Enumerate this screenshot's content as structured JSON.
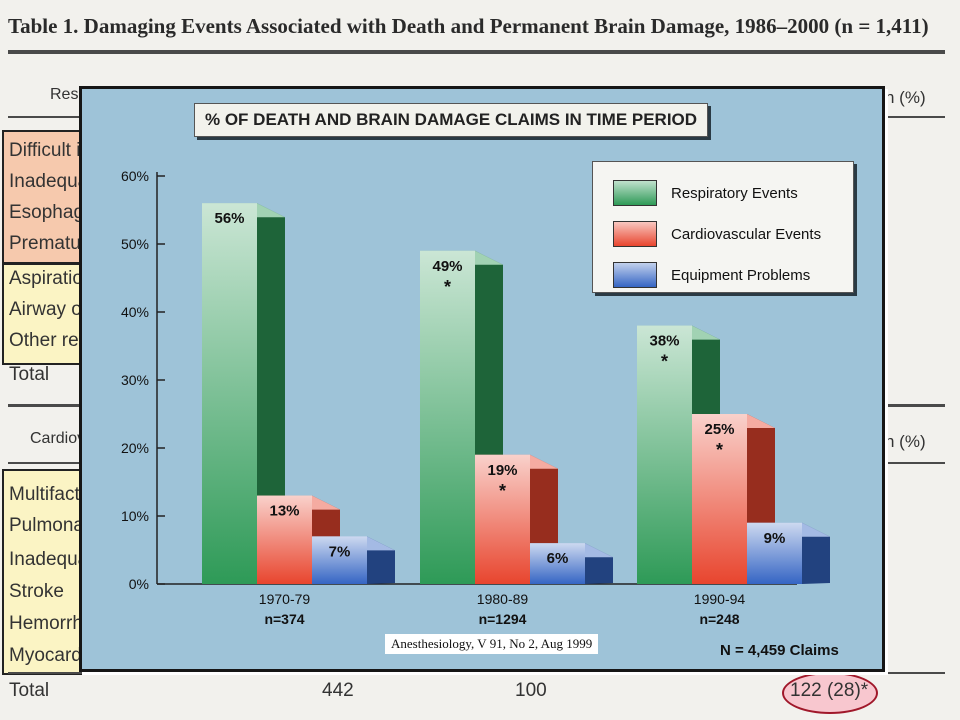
{
  "background_table": {
    "title": "Table 1. Damaging Events Associated with Death and Permanent Brain Damage, 1986–2000 (n = 1,411)",
    "header_left": "Resp",
    "header_right": "n (%)",
    "rows_top": [
      "Difficult in",
      "Inadequat",
      "Esophage",
      "Premature",
      "Aspiration",
      "Airway ob",
      "Other resp",
      "Total"
    ],
    "header2_left": "Cardiov",
    "header2_right": "n (%)",
    "rows_bottom": [
      "Multifacto",
      "Pulmonary",
      "Inadequat",
      "Stroke",
      "Hemorrha",
      "Myocardia"
    ],
    "total_label": "Total",
    "totals": [
      "442",
      "100"
    ],
    "highlighted_total": "122 (28)*"
  },
  "panel": {
    "citation": "Anesthesiology, V 91, No 2, Aug 1999",
    "claims_total": "N = 4,459 Claims"
  },
  "chart_data": {
    "type": "bar",
    "title": "% OF DEATH AND BRAIN DAMAGE CLAIMS IN TIME PERIOD",
    "categories": [
      "1970-79",
      "1980-89",
      "1990-94"
    ],
    "category_counts": [
      "n=374",
      "n=1294",
      "n=248"
    ],
    "series": [
      {
        "name": "Respiratory Events",
        "values": [
          56,
          49,
          38
        ],
        "labels": [
          "56%",
          "49%",
          "38%"
        ],
        "color": "#2e9a57",
        "asterisk": [
          false,
          true,
          true
        ]
      },
      {
        "name": "Cardiovascular Events",
        "values": [
          13,
          19,
          25
        ],
        "labels": [
          "13%",
          "19%",
          "25%"
        ],
        "color": "#e8452e",
        "asterisk": [
          false,
          true,
          true
        ]
      },
      {
        "name": "Equipment Problems",
        "values": [
          7,
          6,
          9
        ],
        "labels": [
          "7%",
          "6%",
          "9%"
        ],
        "color": "#3565c4",
        "asterisk": [
          false,
          false,
          false
        ]
      }
    ],
    "yticks": [
      "0%",
      "10%",
      "20%",
      "30%",
      "40%",
      "50%",
      "60%"
    ],
    "ylim": [
      0,
      60
    ],
    "legend_position": "top-right",
    "note": "N = 4,459 Claims"
  }
}
